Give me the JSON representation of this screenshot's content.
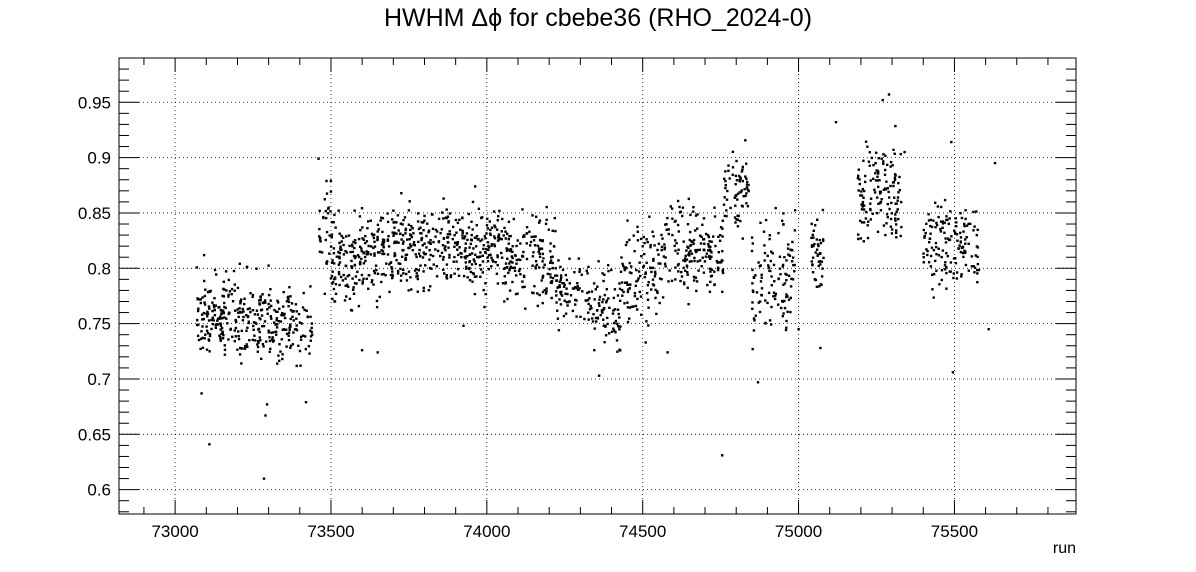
{
  "chart_data": {
    "type": "scatter",
    "title": "HWHM Δϕ for cbebe36 (RHO_2024-0)",
    "xlabel": "run",
    "ylabel": "",
    "xlim": [
      72820,
      75890
    ],
    "ylim": [
      0.578,
      0.99
    ],
    "grid": true,
    "legend": "none",
    "marker_color": "#000000",
    "x_ticks": [
      73000,
      73500,
      74000,
      74500,
      75000,
      75500
    ],
    "x_tick_labels": [
      "73000",
      "73500",
      "74000",
      "74500",
      "75000",
      "75500"
    ],
    "y_ticks": [
      0.6,
      0.65,
      0.7,
      0.75,
      0.8,
      0.85,
      0.9,
      0.95
    ],
    "y_tick_labels": [
      "0.6",
      "0.65",
      "0.7",
      "0.75",
      "0.8",
      "0.85",
      "0.9",
      "0.95"
    ],
    "clusters": [
      {
        "x_range": [
          73070,
          73160
        ],
        "y_center": 0.763,
        "y_spread": 0.018,
        "count": 110
      },
      {
        "x_range": [
          73160,
          73300
        ],
        "y_center": 0.757,
        "y_spread": 0.02,
        "count": 130
      },
      {
        "x_range": [
          73300,
          73440
        ],
        "y_center": 0.748,
        "y_spread": 0.016,
        "count": 120
      },
      {
        "x_range": [
          73460,
          73500
        ],
        "y_center": 0.835,
        "y_spread": 0.022,
        "count": 30
      },
      {
        "x_range": [
          73500,
          73700
        ],
        "y_center": 0.808,
        "y_spread": 0.02,
        "count": 210
      },
      {
        "x_range": [
          73700,
          73900
        ],
        "y_center": 0.82,
        "y_spread": 0.018,
        "count": 200
      },
      {
        "x_range": [
          73900,
          74050
        ],
        "y_center": 0.82,
        "y_spread": 0.02,
        "count": 160
      },
      {
        "x_range": [
          74050,
          74220
        ],
        "y_center": 0.81,
        "y_spread": 0.02,
        "count": 160
      },
      {
        "x_range": [
          74220,
          74330
        ],
        "y_center": 0.78,
        "y_spread": 0.015,
        "count": 80
      },
      {
        "x_range": [
          74330,
          74430
        ],
        "y_center": 0.762,
        "y_spread": 0.02,
        "count": 80
      },
      {
        "x_range": [
          74430,
          74560
        ],
        "y_center": 0.8,
        "y_spread": 0.022,
        "count": 110
      },
      {
        "x_range": [
          74560,
          74760
        ],
        "y_center": 0.815,
        "y_spread": 0.02,
        "count": 180
      },
      {
        "x_range": [
          74760,
          74840
        ],
        "y_center": 0.87,
        "y_spread": 0.018,
        "count": 70
      },
      {
        "x_range": [
          74850,
          74990
        ],
        "y_center": 0.795,
        "y_spread": 0.025,
        "count": 120
      },
      {
        "x_range": [
          75040,
          75080
        ],
        "y_center": 0.813,
        "y_spread": 0.018,
        "count": 45
      },
      {
        "x_range": [
          75190,
          75330
        ],
        "y_center": 0.868,
        "y_spread": 0.022,
        "count": 140
      },
      {
        "x_range": [
          75400,
          75580
        ],
        "y_center": 0.822,
        "y_spread": 0.018,
        "count": 150
      }
    ],
    "outliers": [
      [
        73085,
        0.687
      ],
      [
        73110,
        0.641
      ],
      [
        73285,
        0.61
      ],
      [
        73290,
        0.667
      ],
      [
        73295,
        0.677
      ],
      [
        73420,
        0.679
      ],
      [
        73460,
        0.899
      ],
      [
        73600,
        0.726
      ],
      [
        73650,
        0.724
      ],
      [
        73925,
        0.748
      ],
      [
        74755,
        0.631
      ],
      [
        74870,
        0.697
      ],
      [
        75120,
        0.932
      ],
      [
        75270,
        0.952
      ],
      [
        75290,
        0.957
      ],
      [
        75340,
        0.905
      ],
      [
        75495,
        0.706
      ],
      [
        75490,
        0.914
      ],
      [
        75630,
        0.895
      ],
      [
        74580,
        0.724
      ],
      [
        74730,
        0.785
      ],
      [
        74360,
        0.703
      ],
      [
        75000,
        0.745
      ],
      [
        75070,
        0.728
      ],
      [
        75610,
        0.745
      ]
    ]
  }
}
